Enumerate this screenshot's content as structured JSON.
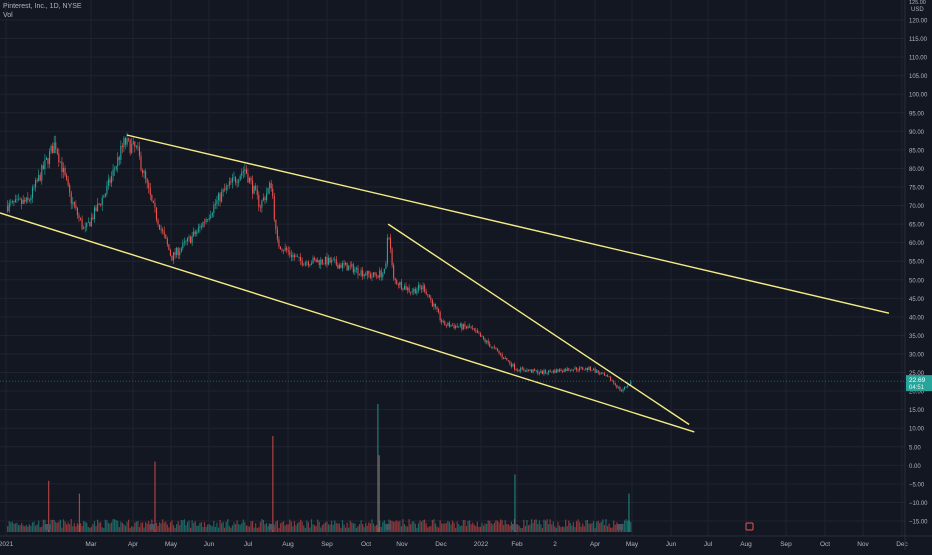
{
  "header": {
    "symbol_line": "Pinterest, Inc., 1D, NYSE",
    "volume_label": "Vol"
  },
  "colors": {
    "background": "#131722",
    "grid": "#1f2330",
    "up": "#26a69a",
    "down": "#ef5350",
    "trendline": "#f5eb84",
    "axis_text": "#b2b5be",
    "price_tag_bg": "#26a69a"
  },
  "chart_data": {
    "type": "candlestick",
    "y_axis": {
      "unit": "USD",
      "top_label": "125.00",
      "tick_labels": [
        "120.00",
        "115.00",
        "110.00",
        "105.00",
        "100.00",
        "95.00",
        "90.00",
        "85.00",
        "80.00",
        "75.00",
        "70.00",
        "65.00",
        "60.00",
        "55.00",
        "50.00",
        "45.00",
        "40.00",
        "35.00",
        "30.00",
        "25.00",
        "20.00",
        "15.00",
        "10.00",
        "5.00",
        "0.00",
        "−5.00",
        "−10.00",
        "−15.00"
      ],
      "ylim": [
        -15,
        125
      ]
    },
    "x_axis": {
      "tick_labels": [
        "2021",
        "Mar",
        "Apr",
        "May",
        "Jun",
        "Jul",
        "Aug",
        "Sep",
        "Oct",
        "Nov",
        "Dec",
        "2022",
        "Feb",
        "2",
        "Apr",
        "May",
        "Jun",
        "Jul",
        "Aug",
        "Sep",
        "Oct",
        "Nov",
        "Dec"
      ]
    },
    "last_price": {
      "value": "22.69",
      "countdown": "04:51"
    },
    "price_path": [
      {
        "date": "2021-01-04",
        "close": 70
      },
      {
        "date": "2021-01-20",
        "close": 71
      },
      {
        "date": "2021-02-10",
        "close": 87
      },
      {
        "date": "2021-02-22",
        "close": 72
      },
      {
        "date": "2021-03-05",
        "close": 63
      },
      {
        "date": "2021-03-22",
        "close": 74
      },
      {
        "date": "2021-04-05",
        "close": 87
      },
      {
        "date": "2021-04-15",
        "close": 85
      },
      {
        "date": "2021-04-27",
        "close": 70
      },
      {
        "date": "2021-05-12",
        "close": 56
      },
      {
        "date": "2021-06-01",
        "close": 63
      },
      {
        "date": "2021-06-20",
        "close": 73
      },
      {
        "date": "2021-07-08",
        "close": 80
      },
      {
        "date": "2021-07-20",
        "close": 70
      },
      {
        "date": "2021-07-29",
        "close": 76
      },
      {
        "date": "2021-08-02",
        "close": 60
      },
      {
        "date": "2021-08-20",
        "close": 55
      },
      {
        "date": "2021-09-10",
        "close": 55
      },
      {
        "date": "2021-10-01",
        "close": 53
      },
      {
        "date": "2021-10-15",
        "close": 51
      },
      {
        "date": "2021-10-26",
        "close": 52
      },
      {
        "date": "2021-10-28",
        "close": 65
      },
      {
        "date": "2021-11-01",
        "close": 50
      },
      {
        "date": "2021-11-15",
        "close": 47
      },
      {
        "date": "2021-11-25",
        "close": 48
      },
      {
        "date": "2021-12-10",
        "close": 38
      },
      {
        "date": "2021-12-31",
        "close": 37
      },
      {
        "date": "2022-01-20",
        "close": 31
      },
      {
        "date": "2022-02-05",
        "close": 26
      },
      {
        "date": "2022-02-25",
        "close": 25
      },
      {
        "date": "2022-03-20",
        "close": 26
      },
      {
        "date": "2022-04-05",
        "close": 26
      },
      {
        "date": "2022-04-20",
        "close": 23
      },
      {
        "date": "2022-04-28",
        "close": 20
      },
      {
        "date": "2022-05-06",
        "close": 22.69
      }
    ],
    "volume_spikes": [
      {
        "date": "2021-02-05",
        "value": 8
      },
      {
        "date": "2021-03-01",
        "value": 6
      },
      {
        "date": "2021-04-29",
        "value": 11
      },
      {
        "date": "2021-07-30",
        "value": 15
      },
      {
        "date": "2021-10-20",
        "value": 20
      },
      {
        "date": "2021-10-21",
        "value": 12
      },
      {
        "date": "2022-02-04",
        "value": 9
      },
      {
        "date": "2022-05-04",
        "value": 6
      }
    ],
    "trendlines": [
      {
        "from": {
          "date": "2021-04-07",
          "value": 89
        },
        "to": {
          "date": "2022-11-23",
          "value": 41
        }
      },
      {
        "from": {
          "date": "2020-12-29",
          "value": 68
        },
        "to": {
          "date": "2022-06-24",
          "value": 9
        }
      },
      {
        "from": {
          "date": "2021-10-28",
          "value": 65
        },
        "to": {
          "date": "2022-06-20",
          "value": 11
        }
      }
    ],
    "grid": true,
    "legend": "none"
  }
}
